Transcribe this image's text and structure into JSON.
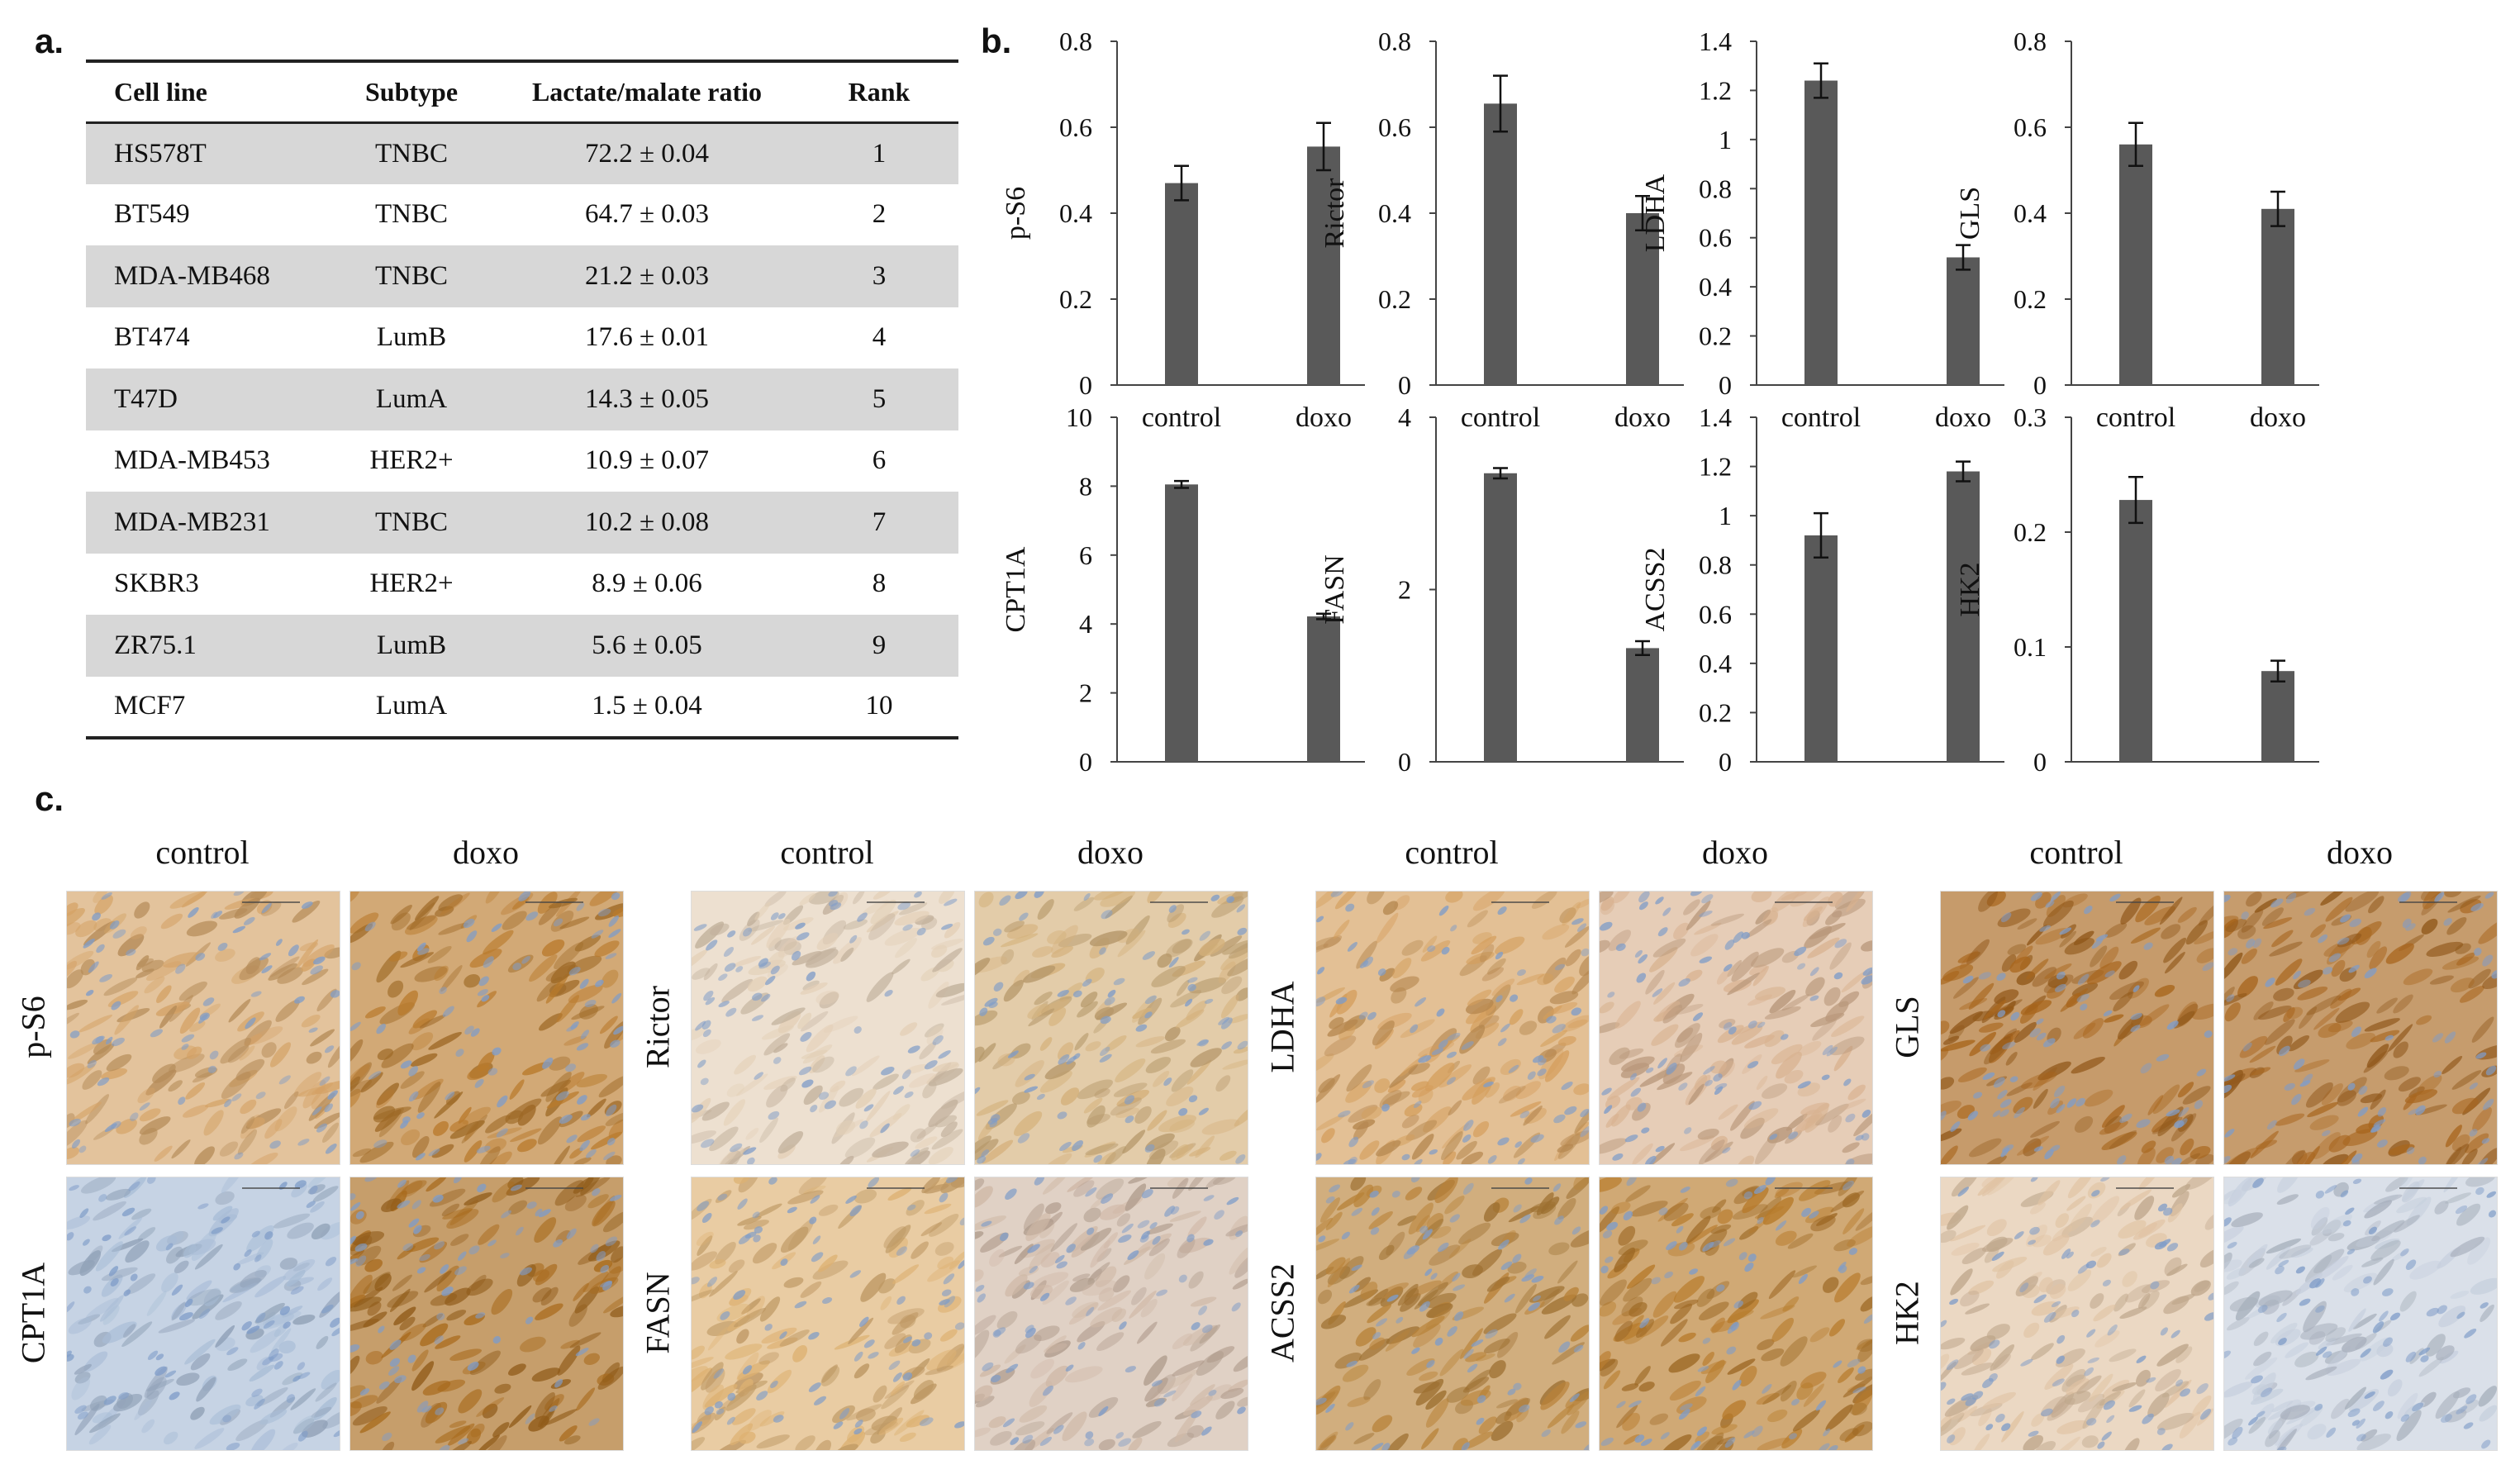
{
  "panel_labels": {
    "a": "a.",
    "b": "b.",
    "c": "c."
  },
  "table": {
    "headers": [
      "Cell line",
      "Subtype",
      "Lactate/malate ratio",
      "Rank"
    ],
    "rows": [
      [
        "HS578T",
        "TNBC",
        "72.2 ± 0.04",
        "1"
      ],
      [
        "BT549",
        "TNBC",
        "64.7 ± 0.03",
        "2"
      ],
      [
        "MDA-MB468",
        "TNBC",
        "21.2 ± 0.03",
        "3"
      ],
      [
        "BT474",
        "LumB",
        "17.6 ± 0.01",
        "4"
      ],
      [
        "T47D",
        "LumA",
        "14.3 ± 0.05",
        "5"
      ],
      [
        "MDA-MB453",
        "HER2+",
        "10.9 ± 0.07",
        "6"
      ],
      [
        "MDA-MB231",
        "TNBC",
        "10.2 ± 0.08",
        "7"
      ],
      [
        "SKBR3",
        "HER2+",
        "8.9 ± 0.06",
        "8"
      ],
      [
        "ZR75.1",
        "LumB",
        "5.6 ± 0.05",
        "9"
      ],
      [
        "MCF7",
        "LumA",
        "1.5 ± 0.04",
        "10"
      ]
    ]
  },
  "chart_data": [
    {
      "type": "bar",
      "title": "",
      "ylabel": "p-S6",
      "categories": [
        "control",
        "doxo"
      ],
      "values": [
        0.47,
        0.555
      ],
      "errors": [
        0.04,
        0.055
      ],
      "ylim": [
        0,
        0.8
      ],
      "yticks": [
        "0",
        "0.2",
        "0.4",
        "0.6",
        "0.8"
      ]
    },
    {
      "type": "bar",
      "title": "",
      "ylabel": "Rictor",
      "categories": [
        "control",
        "doxo"
      ],
      "values": [
        0.655,
        0.4
      ],
      "errors": [
        0.065,
        0.04
      ],
      "ylim": [
        0,
        0.8
      ],
      "yticks": [
        "0",
        "0.2",
        "0.4",
        "0.6",
        "0.8"
      ]
    },
    {
      "type": "bar",
      "title": "",
      "ylabel": "LDHA",
      "categories": [
        "control",
        "doxo"
      ],
      "values": [
        1.24,
        0.52
      ],
      "errors": [
        0.07,
        0.05
      ],
      "ylim": [
        0,
        1.4
      ],
      "yticks": [
        "0",
        "0.2",
        "0.4",
        "0.6",
        "0.8",
        "1",
        "1.2",
        "1.4"
      ]
    },
    {
      "type": "bar",
      "title": "",
      "ylabel": "GLS",
      "categories": [
        "control",
        "doxo"
      ],
      "values": [
        0.56,
        0.41
      ],
      "errors": [
        0.05,
        0.04
      ],
      "ylim": [
        0,
        0.8
      ],
      "yticks": [
        "0",
        "0.2",
        "0.4",
        "0.6",
        "0.8"
      ]
    },
    {
      "type": "bar",
      "title": "",
      "ylabel": "CPT1A",
      "categories": [
        "control",
        "doxo"
      ],
      "values": [
        8.05,
        4.22
      ],
      "errors": [
        0.1,
        0.08
      ],
      "ylim": [
        0,
        10
      ],
      "yticks": [
        "0",
        "2",
        "4",
        "6",
        "8",
        "10"
      ]
    },
    {
      "type": "bar",
      "title": "",
      "ylabel": "FASN",
      "categories": [
        "control",
        "doxo"
      ],
      "values": [
        3.35,
        1.32
      ],
      "errors": [
        0.06,
        0.08
      ],
      "ylim": [
        0,
        4
      ],
      "yticks": [
        "0",
        "2",
        "4"
      ]
    },
    {
      "type": "bar",
      "title": "",
      "ylabel": "ACSS2",
      "categories": [
        "control",
        "doxo"
      ],
      "values": [
        0.92,
        1.18
      ],
      "errors": [
        0.09,
        0.04
      ],
      "ylim": [
        0,
        1.4
      ],
      "yticks": [
        "0",
        "0.2",
        "0.4",
        "0.6",
        "0.8",
        "1",
        "1.2",
        "1.4"
      ]
    },
    {
      "type": "bar",
      "title": "",
      "ylabel": "HK2",
      "categories": [
        "control",
        "doxo"
      ],
      "values": [
        0.228,
        0.079
      ],
      "errors": [
        0.02,
        0.009
      ],
      "ylim": [
        0,
        0.3
      ],
      "yticks": [
        "0",
        "0.1",
        "0.2",
        "0.3"
      ]
    }
  ],
  "micrographs": {
    "groups": [
      {
        "col_labels": [
          "control",
          "doxo"
        ],
        "rows": [
          "p-S6",
          "CPT1A"
        ]
      },
      {
        "col_labels": [
          "control",
          "doxo"
        ],
        "rows": [
          "Rictor",
          "FASN"
        ]
      },
      {
        "col_labels": [
          "control",
          "doxo"
        ],
        "rows": [
          "LDHA",
          "ACSS2"
        ]
      },
      {
        "col_labels": [
          "control",
          "doxo"
        ],
        "rows": [
          "GLS",
          "HK2"
        ]
      }
    ],
    "stain": [
      [
        "#d4a266",
        "#b97a2c",
        "#a8bcd6",
        "#a86a1c"
      ],
      [
        "#e3cfb6",
        "#d4b07a",
        "#ddb172",
        "#cfb8a6"
      ],
      [
        "#d49e5c",
        "#d8b290",
        "#b88238",
        "#b77a2a"
      ],
      [
        "#a8651c",
        "#a8661e",
        "#e0c3a3",
        "#c6cfdd"
      ]
    ],
    "stain_note": "Colors above are approximate average tissue stain tones per image"
  }
}
